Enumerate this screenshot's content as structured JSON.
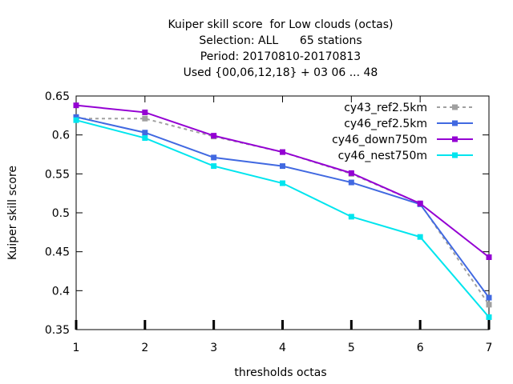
{
  "chart_data": {
    "type": "line",
    "title_lines": [
      "Kuiper skill score  for Low clouds (octas)",
      "Selection: ALL      65 stations",
      "Period: 20170810-20170813",
      "Used {00,06,12,18} + 03 06 ... 48"
    ],
    "xlabel": "thresholds octas",
    "ylabel": "Kuiper skill score",
    "x": [
      1,
      2,
      3,
      4,
      5,
      6,
      7
    ],
    "xlim": [
      1,
      7
    ],
    "ylim": [
      0.35,
      0.65
    ],
    "x_ticks": [
      "1",
      "2",
      "3",
      "4",
      "5",
      "6",
      "7"
    ],
    "y_ticks": [
      "0.35",
      "0.4",
      "0.45",
      "0.5",
      "0.55",
      "0.6",
      "0.65"
    ],
    "grid": false,
    "legend_position": "top-right",
    "series": [
      {
        "name": "cy43_ref2.5km",
        "color": "#a0a0a0",
        "dashed": true,
        "values": [
          0.621,
          0.621,
          0.598,
          0.578,
          0.55,
          0.512,
          0.382
        ]
      },
      {
        "name": "cy46_ref2.5km",
        "color": "#4169e1",
        "dashed": false,
        "values": [
          0.623,
          0.603,
          0.571,
          0.56,
          0.539,
          0.511,
          0.391
        ]
      },
      {
        "name": "cy46_down750m",
        "color": "#9400d3",
        "dashed": false,
        "values": [
          0.638,
          0.629,
          0.599,
          0.578,
          0.551,
          0.512,
          0.443
        ]
      },
      {
        "name": "cy46_nest750m",
        "color": "#00e5ee",
        "dashed": false,
        "values": [
          0.619,
          0.596,
          0.56,
          0.538,
          0.495,
          0.469,
          0.366
        ]
      }
    ]
  }
}
